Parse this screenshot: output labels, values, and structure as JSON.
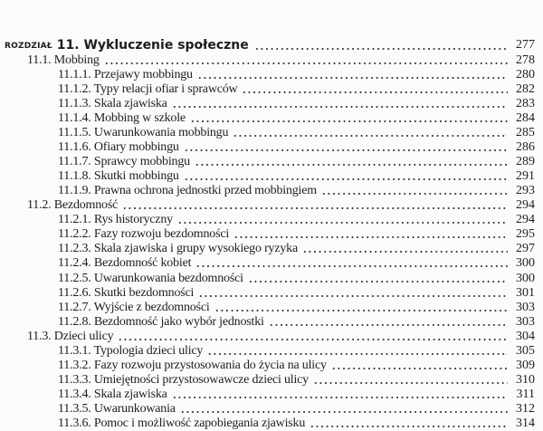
{
  "chapter": {
    "label": "ROZDZIAŁ",
    "title": "11. Wykluczenie społeczne",
    "page": "277"
  },
  "entries": [
    {
      "level": 2,
      "title": "11.1. Mobbing",
      "page": "278"
    },
    {
      "level": 3,
      "title": "11.1.1. Przejawy mobbingu",
      "page": "280"
    },
    {
      "level": 3,
      "title": "11.1.2. Typy relacji ofiar i sprawców",
      "page": "282"
    },
    {
      "level": 3,
      "title": "11.1.3. Skala zjawiska",
      "page": "283"
    },
    {
      "level": 3,
      "title": "11.1.4. Mobbing w szkole",
      "page": "284"
    },
    {
      "level": 3,
      "title": "11.1.5. Uwarunkowania mobbingu",
      "page": "285"
    },
    {
      "level": 3,
      "title": "11.1.6. Ofiary mobbingu",
      "page": "286"
    },
    {
      "level": 3,
      "title": "11.1.7. Sprawcy mobbingu",
      "page": "289"
    },
    {
      "level": 3,
      "title": "11.1.8. Skutki mobbingu",
      "page": "291"
    },
    {
      "level": 3,
      "title": "11.1.9. Prawna ochrona jednostki przed mobbingiem",
      "page": "293"
    },
    {
      "level": 2,
      "title": "11.2. Bezdomność",
      "page": "294"
    },
    {
      "level": 3,
      "title": "11.2.1. Rys historyczny",
      "page": "294"
    },
    {
      "level": 3,
      "title": "11.2.2. Fazy rozwoju bezdomności",
      "page": "295"
    },
    {
      "level": 3,
      "title": "11.2.3. Skala zjawiska i grupy wysokiego ryzyka",
      "page": "297"
    },
    {
      "level": 3,
      "title": "11.2.4. Bezdomność kobiet",
      "page": "300"
    },
    {
      "level": 3,
      "title": "11.2.5. Uwarunkowania bezdomności",
      "page": "300"
    },
    {
      "level": 3,
      "title": "11.2.6. Skutki bezdomności",
      "page": "301"
    },
    {
      "level": 3,
      "title": "11.2.7. Wyjście z bezdomności",
      "page": "303"
    },
    {
      "level": 3,
      "title": "11.2.8. Bezdomność jako wybór jednostki",
      "page": "303"
    },
    {
      "level": 2,
      "title": "11.3. Dzieci ulicy",
      "page": "304"
    },
    {
      "level": 3,
      "title": "11.3.1. Typologia dzieci ulicy",
      "page": "305"
    },
    {
      "level": 3,
      "title": "11.3.2. Fazy rozwoju przystosowania do życia na ulicy",
      "page": "309"
    },
    {
      "level": 3,
      "title": "11.3.3. Umiejętności przystosowawcze dzieci ulicy",
      "page": "310"
    },
    {
      "level": 3,
      "title": "11.3.4. Skala zjawiska",
      "page": "311"
    },
    {
      "level": 3,
      "title": "11.3.5. Uwarunkowania",
      "page": "312"
    },
    {
      "level": 3,
      "title": "11.3.6. Pomoc i możliwość zapobiegania zjawisku",
      "page": "314"
    }
  ]
}
